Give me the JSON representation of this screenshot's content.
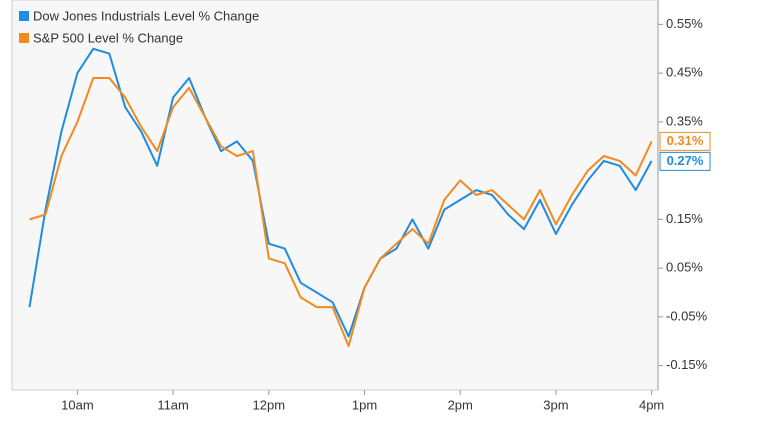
{
  "chart_data": {
    "type": "line",
    "legend": "top-left",
    "x": [
      570,
      580,
      590,
      600,
      610,
      620,
      630,
      640,
      650,
      660,
      670,
      680,
      690,
      700,
      710,
      720,
      730,
      740,
      750,
      760,
      770,
      780,
      790,
      800,
      810,
      820,
      830,
      840,
      850,
      860,
      870,
      880,
      890,
      900,
      910,
      920,
      930,
      940,
      950,
      960
    ],
    "xlim": [
      559,
      964
    ],
    "xticks": [
      {
        "value": 600,
        "label": "10am"
      },
      {
        "value": 660,
        "label": "11am"
      },
      {
        "value": 720,
        "label": "12pm"
      },
      {
        "value": 780,
        "label": "1pm"
      },
      {
        "value": 840,
        "label": "2pm"
      },
      {
        "value": 900,
        "label": "3pm"
      },
      {
        "value": 960,
        "label": "4pm"
      }
    ],
    "ylim": [
      -0.2,
      0.6
    ],
    "yticks": [
      {
        "value": 0.55,
        "label": "0.55%"
      },
      {
        "value": 0.45,
        "label": "0.45%"
      },
      {
        "value": 0.35,
        "label": "0.35%"
      },
      {
        "value": 0.15,
        "label": "0.15%"
      },
      {
        "value": 0.05,
        "label": "0.05%"
      },
      {
        "value": -0.05,
        "label": "-0.05%"
      },
      {
        "value": -0.15,
        "label": "-0.15%"
      }
    ],
    "series": [
      {
        "name": "Dow Jones Industrials Level % Change",
        "color": "#1e8de0",
        "values": [
          -0.03,
          0.17,
          0.33,
          0.45,
          0.5,
          0.49,
          0.38,
          0.33,
          0.26,
          0.4,
          0.44,
          0.36,
          0.29,
          0.31,
          0.27,
          0.1,
          0.09,
          0.02,
          0.0,
          -0.02,
          -0.09,
          0.01,
          0.07,
          0.09,
          0.15,
          0.09,
          0.17,
          0.19,
          0.21,
          0.2,
          0.16,
          0.13,
          0.19,
          0.12,
          0.18,
          0.23,
          0.27,
          0.26,
          0.21,
          0.27
        ],
        "end_label": "0.27%"
      },
      {
        "name": "S&P 500 Level % Change",
        "color": "#f28a1e",
        "values": [
          0.15,
          0.16,
          0.28,
          0.35,
          0.44,
          0.44,
          0.4,
          0.34,
          0.29,
          0.38,
          0.42,
          0.36,
          0.3,
          0.28,
          0.29,
          0.07,
          0.06,
          -0.01,
          -0.03,
          -0.03,
          -0.11,
          0.01,
          0.07,
          0.1,
          0.13,
          0.1,
          0.19,
          0.23,
          0.2,
          0.21,
          0.18,
          0.15,
          0.21,
          0.14,
          0.2,
          0.25,
          0.28,
          0.27,
          0.24,
          0.31
        ],
        "end_label": "0.31%"
      }
    ]
  }
}
